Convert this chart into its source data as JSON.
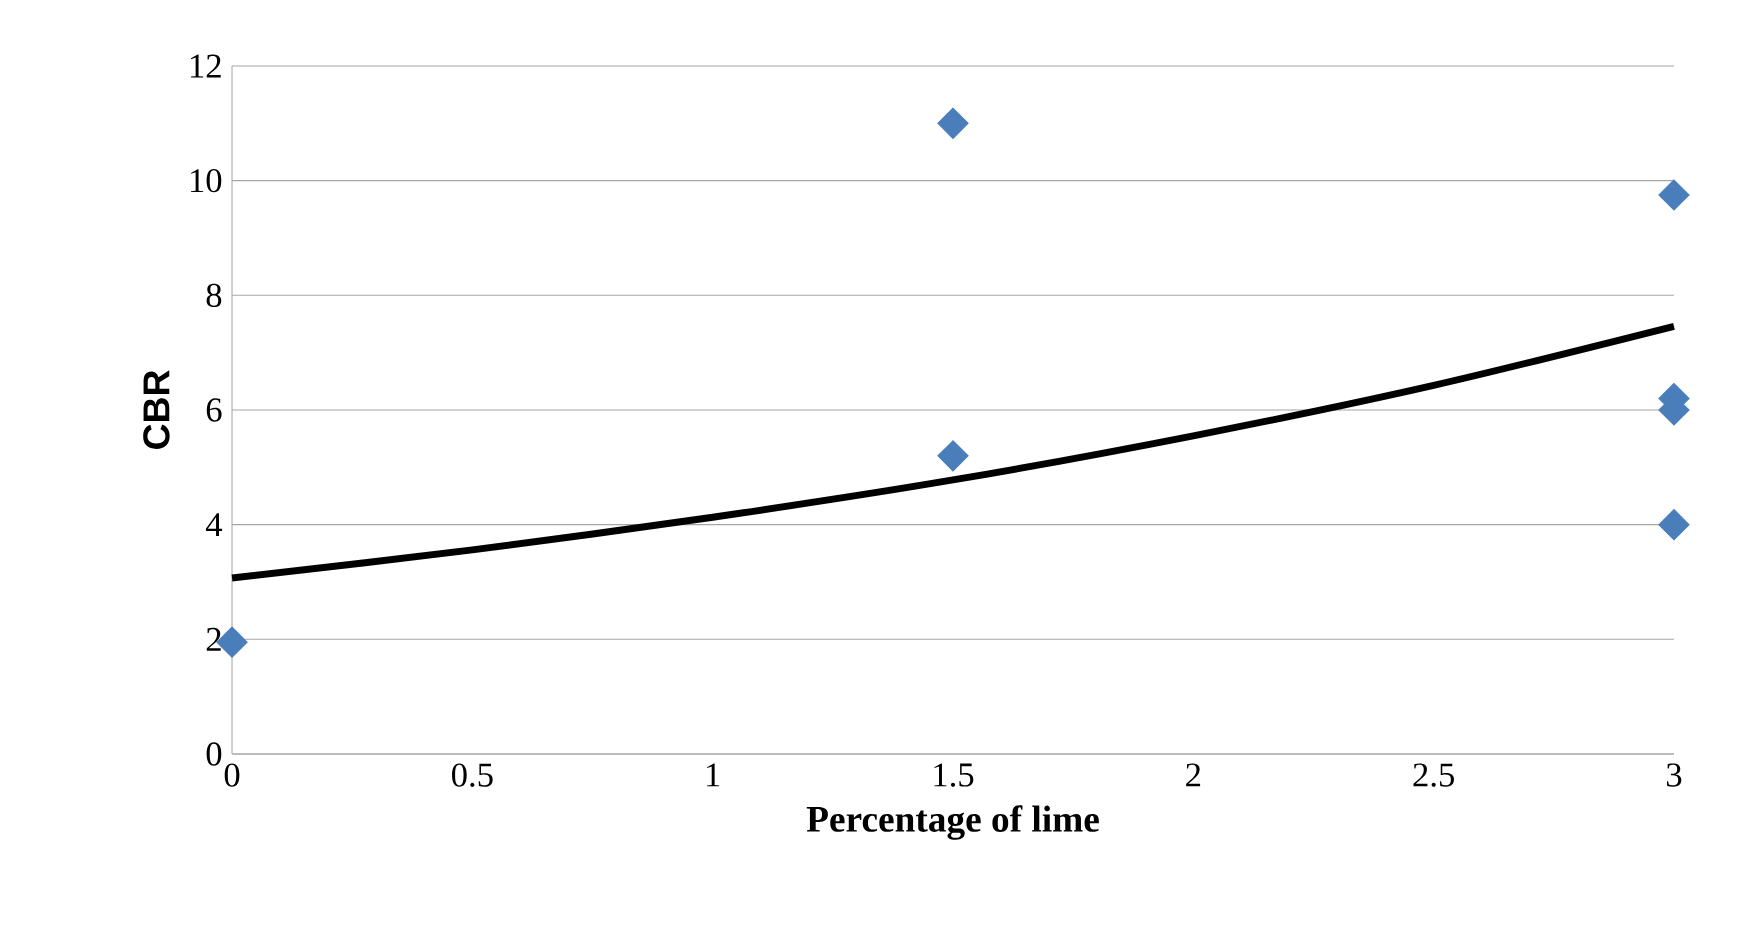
{
  "chart_data": {
    "type": "scatter",
    "xlabel": "Percentage of lime",
    "ylabel": "CBR",
    "xlim": [
      0,
      3
    ],
    "ylim": [
      0,
      12
    ],
    "xticks": [
      0,
      0.5,
      1,
      1.5,
      2,
      2.5,
      3
    ],
    "yticks": [
      0,
      2,
      4,
      6,
      8,
      10,
      12
    ],
    "grid": "y",
    "marker": "diamond",
    "series": [
      {
        "color": "#4a7ebb",
        "x": [
          0,
          1.5,
          1.5,
          3,
          3,
          3,
          3
        ],
        "values": [
          1.95,
          11.0,
          5.2,
          9.75,
          6.2,
          6.0,
          4.0
        ]
      },
      {
        "type": "line",
        "color": "#000000",
        "marker": "none",
        "line_style": "solid",
        "x": [
          0,
          0.5,
          1,
          1.5,
          2,
          2.5,
          3
        ],
        "values": [
          3.07,
          3.56,
          4.13,
          4.78,
          5.55,
          6.43,
          7.46
        ]
      }
    ]
  }
}
